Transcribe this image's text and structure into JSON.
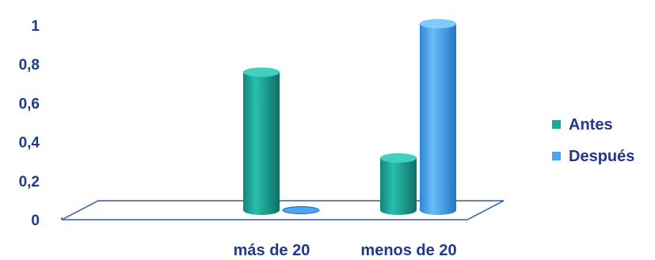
{
  "chart_data": {
    "type": "bar",
    "categories": [
      "",
      "más de 20",
      "menos de 20"
    ],
    "series": [
      {
        "name": "Antes",
        "values": [
          0,
          0.74,
          0.28
        ],
        "color": "#1ea89a"
      },
      {
        "name": "Después",
        "values": [
          0,
          0,
          1
        ],
        "color": "#4aa6f2"
      }
    ],
    "y_ticks": [
      "0",
      "0,2",
      "0,4",
      "0,6",
      "0,8",
      "1"
    ],
    "ylim": [
      0,
      1
    ],
    "legend_position": "right",
    "grid": false,
    "three_d": true
  }
}
